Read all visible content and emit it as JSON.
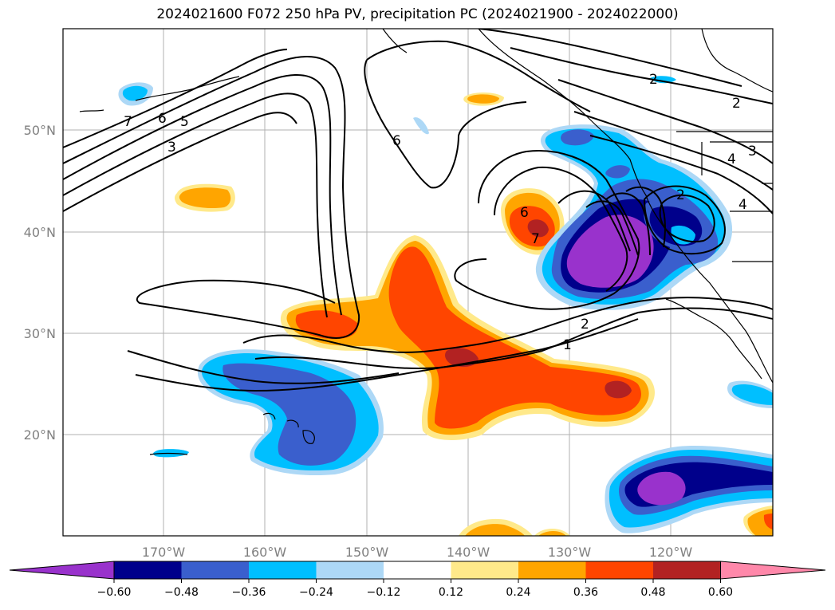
{
  "title": "2024021600 F072 250 hPa PV, precipitation PC (2024021900 - 2024022000)",
  "chart_data": {
    "type": "heatmap",
    "title": "2024021600 F072 250 hPa PV, precipitation PC (2024021900 - 2024022000)",
    "x_axis": {
      "ticks": [
        "170°W",
        "160°W",
        "150°W",
        "140°W",
        "130°W",
        "120°W"
      ]
    },
    "y_axis": {
      "ticks": [
        "50°N",
        "40°N",
        "30°N",
        "20°N"
      ]
    },
    "grid": true,
    "filled_field": {
      "name": "precipitation PC",
      "levels": [
        -0.6,
        -0.48,
        -0.36,
        -0.24,
        -0.12,
        0.12,
        0.24,
        0.36,
        0.48,
        0.6
      ],
      "colors": [
        "#9932CC",
        "#00008B",
        "#3A5FCD",
        "#00BFFF",
        "#ADD8F6",
        "#FFFFFF",
        "#FFE98A",
        "#FFA500",
        "#FF4500",
        "#B22222",
        "#FF88AA"
      ]
    },
    "contour_field": {
      "name": "250 hPa PV",
      "contour_labels": [
        "7",
        "6",
        "5",
        "3",
        "6",
        "6",
        "7",
        "2",
        "1",
        "2",
        "2",
        "3",
        "4",
        "4",
        "2"
      ]
    },
    "colorbar": {
      "tick_labels": [
        "−0.60",
        "−0.48",
        "−0.36",
        "−0.24",
        "−0.12",
        "0.12",
        "0.24",
        "0.36",
        "0.48",
        "0.60"
      ],
      "extend": "both"
    }
  }
}
